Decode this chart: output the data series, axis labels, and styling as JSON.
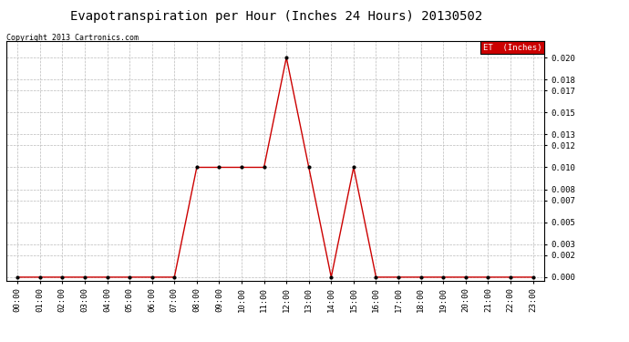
{
  "title": "Evapotranspiration per Hour (Inches 24 Hours) 20130502",
  "copyright": "Copyright 2013 Cartronics.com",
  "legend_label": "ET  (Inches)",
  "legend_bg": "#cc0000",
  "legend_text_color": "#ffffff",
  "x_labels": [
    "00:00",
    "01:00",
    "02:00",
    "03:00",
    "04:00",
    "05:00",
    "06:00",
    "07:00",
    "08:00",
    "09:00",
    "10:00",
    "11:00",
    "12:00",
    "13:00",
    "14:00",
    "15:00",
    "16:00",
    "17:00",
    "18:00",
    "19:00",
    "20:00",
    "21:00",
    "22:00",
    "23:00"
  ],
  "y_values": [
    0.0,
    0.0,
    0.0,
    0.0,
    0.0,
    0.0,
    0.0,
    0.0,
    0.01,
    0.01,
    0.01,
    0.01,
    0.02,
    0.01,
    0.0,
    0.01,
    0.0,
    0.0,
    0.0,
    0.0,
    0.0,
    0.0,
    0.0,
    0.0
  ],
  "line_color": "#cc0000",
  "marker_color": "#000000",
  "bg_color": "#ffffff",
  "grid_color": "#bbbbbb",
  "yticks": [
    0.0,
    0.002,
    0.003,
    0.005,
    0.007,
    0.008,
    0.01,
    0.012,
    0.013,
    0.015,
    0.017,
    0.018,
    0.02
  ],
  "ylim": [
    -0.0003,
    0.0215
  ],
  "title_fontsize": 10,
  "copyright_fontsize": 6,
  "tick_fontsize": 6.5
}
